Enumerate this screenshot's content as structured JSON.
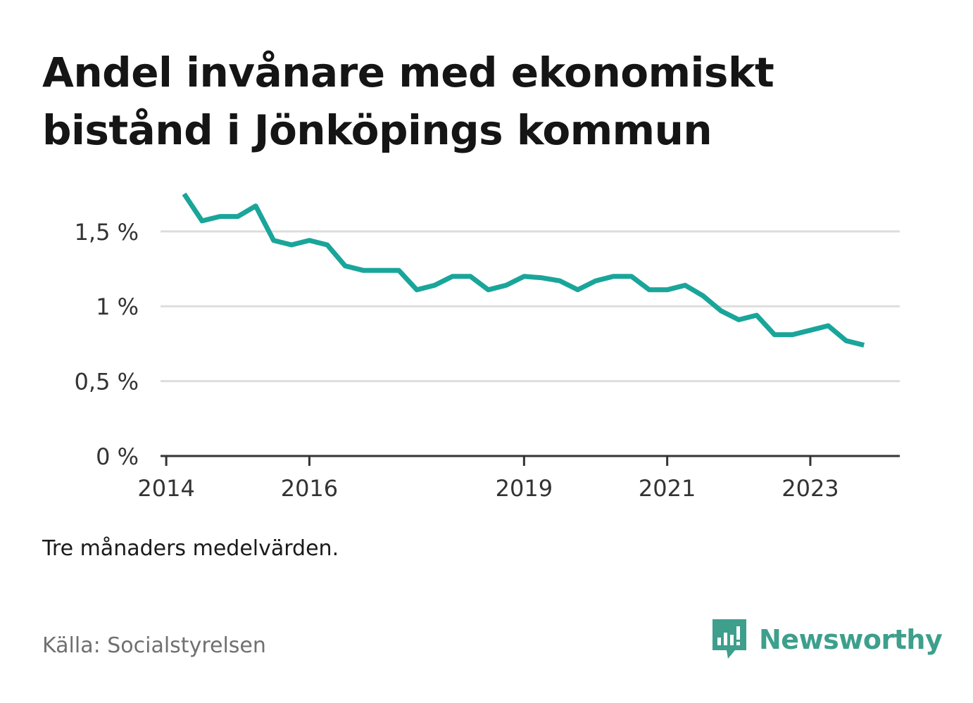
{
  "title": "Andel invånare med ekonomiskt bistånd i Jönköpings kommun",
  "note": "Tre månaders medelvärden.",
  "source": "Källa: Socialstyrelsen",
  "brand": "Newsworthy",
  "colors": {
    "line": "#1aa59a",
    "grid": "#dddddd",
    "axis": "#333333",
    "brand": "#3d9f8c"
  },
  "chart_data": {
    "type": "line",
    "title": "Andel invånare med ekonomiskt bistånd i Jönköpings kommun",
    "xlabel": "",
    "ylabel": "",
    "grid": true,
    "xlim": [
      2013.92,
      2024.25
    ],
    "ylim": [
      0,
      1.8
    ],
    "y_ticks": [
      0,
      0.5,
      1,
      1.5
    ],
    "y_tick_labels": [
      "0 %",
      "0,5 %",
      "1 %",
      "1,5 %"
    ],
    "x_ticks": [
      2014,
      2016,
      2019,
      2021,
      2023
    ],
    "x_tick_labels": [
      "2014",
      "2016",
      "2019",
      "2021",
      "2023"
    ],
    "series": [
      {
        "name": "Andel invånare med ekonomiskt bistånd",
        "x": [
          2014.25,
          2014.5,
          2014.75,
          2015.0,
          2015.25,
          2015.5,
          2015.75,
          2016.0,
          2016.25,
          2016.5,
          2016.75,
          2017.0,
          2017.25,
          2017.5,
          2017.75,
          2018.0,
          2018.25,
          2018.5,
          2018.75,
          2019.0,
          2019.25,
          2019.5,
          2019.75,
          2020.0,
          2020.25,
          2020.5,
          2020.75,
          2021.0,
          2021.25,
          2021.5,
          2021.75,
          2022.0,
          2022.25,
          2022.5,
          2022.75,
          2023.0,
          2023.25,
          2023.5,
          2023.75
        ],
        "values": [
          1.75,
          1.57,
          1.6,
          1.6,
          1.67,
          1.44,
          1.41,
          1.44,
          1.41,
          1.27,
          1.24,
          1.24,
          1.24,
          1.11,
          1.14,
          1.2,
          1.2,
          1.11,
          1.14,
          1.2,
          1.19,
          1.17,
          1.11,
          1.17,
          1.2,
          1.2,
          1.11,
          1.11,
          1.14,
          1.07,
          0.97,
          0.91,
          0.94,
          0.81,
          0.81,
          0.84,
          0.87,
          0.77,
          0.74
        ]
      }
    ]
  }
}
